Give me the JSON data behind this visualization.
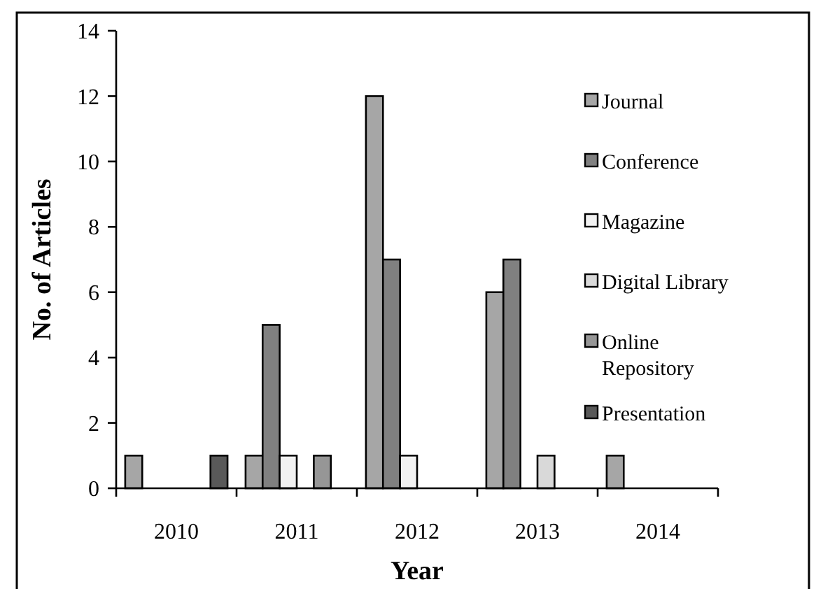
{
  "chart_data": {
    "type": "bar",
    "xlabel": "Year",
    "ylabel": "No. of Articles",
    "categories": [
      "2010",
      "2011",
      "2012",
      "2013",
      "2014"
    ],
    "series": [
      {
        "name": "Journal",
        "color": "#a6a6a6",
        "values": [
          1,
          1,
          12,
          6,
          1
        ]
      },
      {
        "name": "Conference",
        "color": "#808080",
        "values": [
          0,
          5,
          7,
          7,
          0
        ]
      },
      {
        "name": "Magazine",
        "color": "#f2f2f2",
        "values": [
          0,
          1,
          1,
          0,
          0
        ]
      },
      {
        "name": "Digital Library",
        "color": "#d9d9d9",
        "values": [
          0,
          0,
          0,
          1,
          0
        ]
      },
      {
        "name": "Online Repository",
        "color": "#969696",
        "values": [
          0,
          1,
          0,
          0,
          0
        ]
      },
      {
        "name": "Presentation",
        "color": "#595959",
        "values": [
          1,
          0,
          0,
          0,
          0
        ]
      }
    ],
    "ylim": [
      0,
      14
    ],
    "yticks": [
      0,
      2,
      4,
      6,
      8,
      10,
      12,
      14
    ],
    "legend": "right"
  }
}
